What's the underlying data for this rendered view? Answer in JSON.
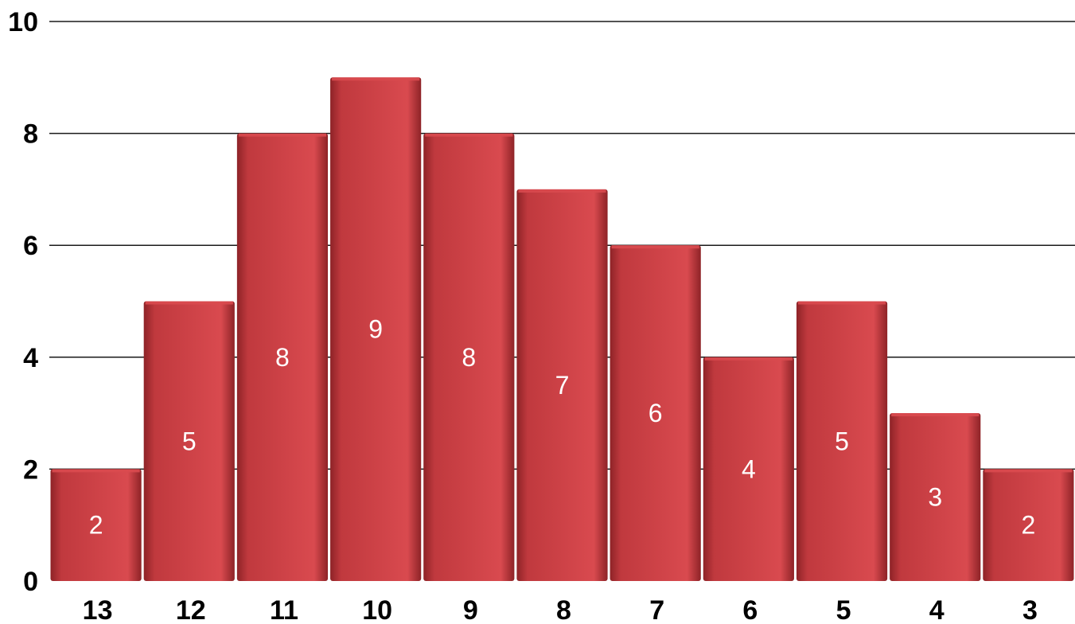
{
  "chart_data": {
    "type": "bar",
    "categories": [
      "13",
      "12",
      "11",
      "10",
      "9",
      "8",
      "7",
      "6",
      "5",
      "4",
      "3"
    ],
    "values": [
      2,
      5,
      8,
      9,
      8,
      7,
      6,
      4,
      5,
      3,
      2
    ],
    "data_labels": [
      "2",
      "5",
      "8",
      "9",
      "8",
      "7",
      "6",
      "4",
      "5",
      "3",
      "2"
    ],
    "ylim": [
      0,
      10
    ],
    "y_ticks": [
      "0",
      "2",
      "4",
      "6",
      "8",
      "10"
    ],
    "grid": true,
    "legend": "none",
    "title": "",
    "xlabel": "",
    "ylabel": "",
    "colors": {
      "bar_fill": "#c0393e",
      "bar_dark": "#8e2327",
      "bar_light": "#d94a4f",
      "grid": "#1a1a1a",
      "data_label": "#ffffff",
      "tick_label": "#000000"
    }
  }
}
